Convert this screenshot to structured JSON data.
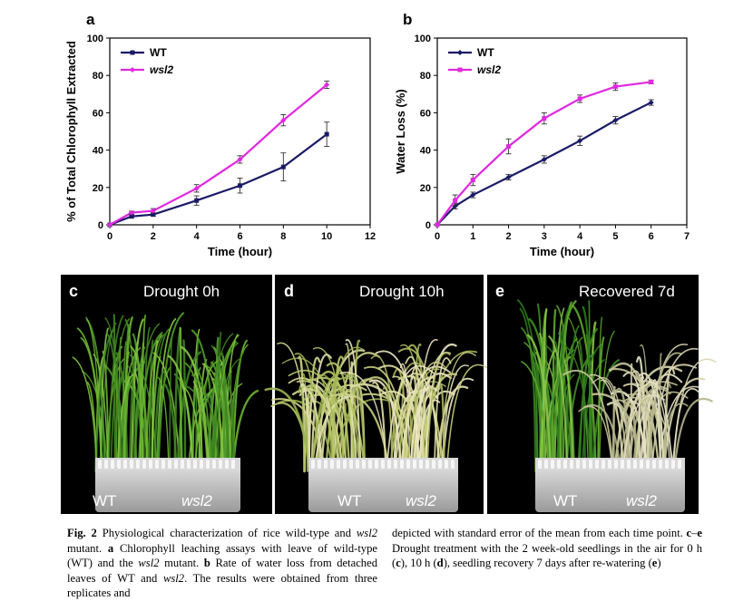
{
  "charts": {
    "a": {
      "letter": "a",
      "chart_data": {
        "type": "line",
        "title": "",
        "xlabel": "Time (hour)",
        "ylabel": "% of Total Chlorophyll Extracted",
        "xlim": [
          0,
          12
        ],
        "ylim": [
          0,
          100
        ],
        "xticks": [
          0,
          2,
          4,
          6,
          8,
          10,
          12
        ],
        "yticks": [
          0,
          20,
          40,
          60,
          80,
          100
        ],
        "grid": false,
        "legend": "top-left",
        "series": [
          {
            "name": "WT",
            "color": "#1a1a66",
            "marker": "square",
            "x": [
              0,
              1,
              2,
              4,
              6,
              8,
              10
            ],
            "y": [
              0,
              4.5,
              5.5,
              13,
              21,
              31,
              48.5
            ],
            "err": [
              0,
              0.8,
              0.8,
              2.5,
              4,
              7.5,
              6.5
            ]
          },
          {
            "name": "wsl2",
            "color": "#e028e0",
            "marker": "diamond",
            "x": [
              0,
              1,
              2,
              4,
              6,
              8,
              10
            ],
            "y": [
              0,
              6.5,
              7.5,
              19.5,
              35,
              56,
              75
            ],
            "err": [
              0,
              0.8,
              1.2,
              2,
              2,
              3,
              2
            ]
          }
        ]
      }
    },
    "b": {
      "letter": "b",
      "chart_data": {
        "type": "line",
        "title": "",
        "xlabel": "Time (hour)",
        "ylabel": "Water Loss (%)",
        "xlim": [
          0,
          7
        ],
        "ylim": [
          0,
          100
        ],
        "xticks": [
          0,
          1,
          2,
          3,
          4,
          5,
          6,
          7
        ],
        "yticks": [
          0,
          20,
          40,
          60,
          80,
          100
        ],
        "grid": false,
        "legend": "top-left",
        "series": [
          {
            "name": "WT",
            "color": "#1a1a66",
            "marker": "diamond",
            "x": [
              0,
              0.5,
              1,
              2,
              3,
              4,
              5,
              6
            ],
            "y": [
              0,
              10,
              16,
              25.5,
              35,
              45,
              56,
              65.5
            ],
            "err": [
              0,
              1.5,
              1.5,
              1.5,
              2,
              2.5,
              2,
              1.5
            ]
          },
          {
            "name": "wsl2",
            "color": "#e028e0",
            "marker": "square",
            "x": [
              0,
              0.5,
              1,
              2,
              3,
              4,
              5,
              6
            ],
            "y": [
              0,
              13,
              24,
              42,
              57,
              67.5,
              74,
              76.5
            ],
            "err": [
              0,
              3,
              3,
              4,
              3,
              2,
              2,
              1
            ]
          }
        ]
      }
    }
  },
  "photos": [
    {
      "letter": "c",
      "title": "Drought 0h",
      "label_wt": "WT",
      "label_mut": "wsl2"
    },
    {
      "letter": "d",
      "title": "Drought 10h",
      "label_wt": "WT",
      "label_mut": "wsl2"
    },
    {
      "letter": "e",
      "title": "Recovered 7d",
      "label_wt": "WT",
      "label_mut": "wsl2"
    }
  ],
  "caption": {
    "col1": [
      {
        "t": "Fig. 2",
        "s": "b"
      },
      {
        "t": " Physiological characterization of rice wild-type and "
      },
      {
        "t": "wsl2",
        "s": "i"
      },
      {
        "t": " mutant. "
      },
      {
        "t": "a",
        "s": "b"
      },
      {
        "t": " Chlorophyll leaching assays with leave of wild-type (WT) and the "
      },
      {
        "t": "wsl2",
        "s": "i"
      },
      {
        "t": " mutant. "
      },
      {
        "t": "b",
        "s": "b"
      },
      {
        "t": " Rate of water loss from detached leaves of WT and "
      },
      {
        "t": "wsl2",
        "s": "i"
      },
      {
        "t": ". The results were obtained from three replicates and"
      }
    ],
    "col2": [
      {
        "t": "depicted with standard error of the mean from each time point. "
      },
      {
        "t": "c",
        "s": "b"
      },
      {
        "t": "–"
      },
      {
        "t": "e",
        "s": "b"
      },
      {
        "t": " Drought treatment with the 2 week-old seedlings in the air for 0 h ("
      },
      {
        "t": "c",
        "s": "b"
      },
      {
        "t": "), 10 h ("
      },
      {
        "t": "d",
        "s": "b"
      },
      {
        "t": "), seedling recovery 7 days after re-watering ("
      },
      {
        "t": "e",
        "s": "b"
      },
      {
        "t": ")"
      }
    ]
  }
}
